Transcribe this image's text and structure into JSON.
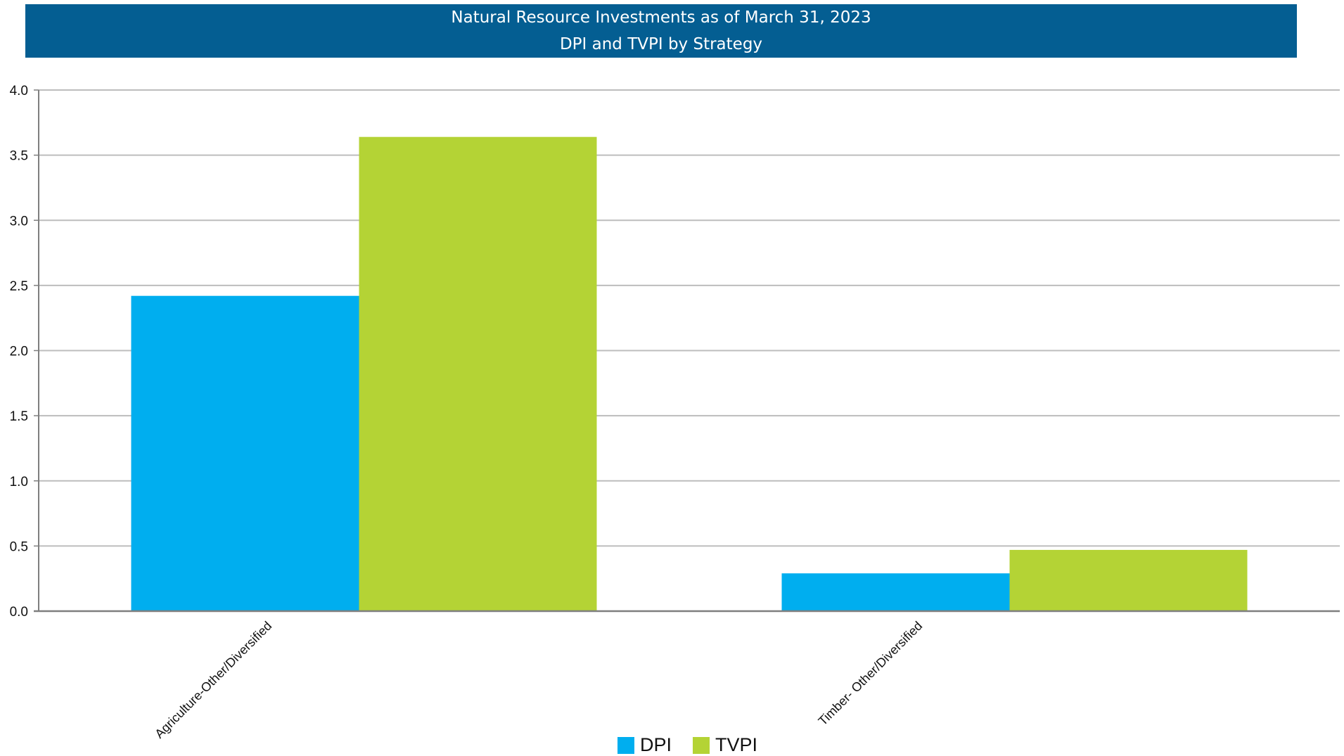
{
  "chart_data": {
    "type": "bar",
    "title": "Natural Resource Investments as of March 31, 2023",
    "subtitle": "DPI and TVPI by Strategy",
    "xlabel": "",
    "ylabel": "",
    "categories": [
      "Agriculture-Other/Diversified",
      "Timber- Other/Diversified"
    ],
    "series": [
      {
        "name": "DPI",
        "color": "#00aeef",
        "values": [
          2.42,
          0.29
        ]
      },
      {
        "name": "TVPI",
        "color": "#b4d335",
        "values": [
          3.64,
          0.47
        ]
      }
    ],
    "ylim": [
      0,
      4.0
    ],
    "yticks": [
      "0.0",
      "0.5",
      "1.0",
      "1.5",
      "2.0",
      "2.5",
      "3.0",
      "3.5",
      "4.0"
    ],
    "grid": true,
    "legend": "bottom-center"
  },
  "colors": {
    "banner": "#045e92",
    "gridline": "#bdbdbd",
    "axis": "#7f7f7f"
  }
}
